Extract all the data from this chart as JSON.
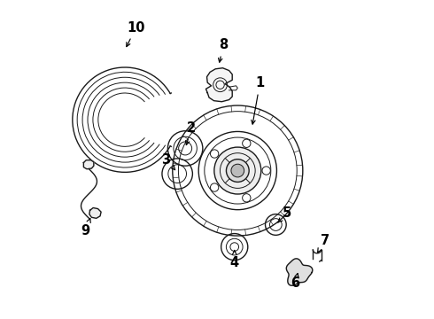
{
  "bg_color": "#ffffff",
  "line_color": "#1a1a1a",
  "fig_w": 4.9,
  "fig_h": 3.6,
  "dpi": 100,
  "labels": {
    "1": [
      0.635,
      0.74,
      0.61,
      0.6
    ],
    "2": [
      0.42,
      0.6,
      0.4,
      0.535
    ],
    "3": [
      0.34,
      0.5,
      0.37,
      0.465
    ],
    "4": [
      0.555,
      0.175,
      0.555,
      0.225
    ],
    "5": [
      0.72,
      0.33,
      0.685,
      0.295
    ],
    "6": [
      0.745,
      0.11,
      0.755,
      0.145
    ],
    "7": [
      0.84,
      0.245,
      0.815,
      0.205
    ],
    "8": [
      0.52,
      0.86,
      0.505,
      0.795
    ],
    "9": [
      0.085,
      0.275,
      0.105,
      0.325
    ],
    "10": [
      0.245,
      0.915,
      0.21,
      0.845
    ]
  }
}
